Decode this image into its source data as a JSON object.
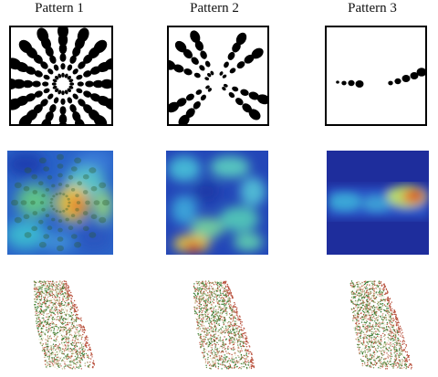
{
  "patterns": [
    {
      "title": "Pattern 1"
    },
    {
      "title": "Pattern 2"
    },
    {
      "title": "Pattern 3"
    }
  ],
  "colors": {
    "heat_low": "#1a33b3",
    "heat_mid": "#35b0d8",
    "heat_high": "#d83a1a",
    "cloud_green": "#2f7a2f",
    "cloud_red": "#b8503c",
    "cloud_light": "#e8e6c8"
  }
}
